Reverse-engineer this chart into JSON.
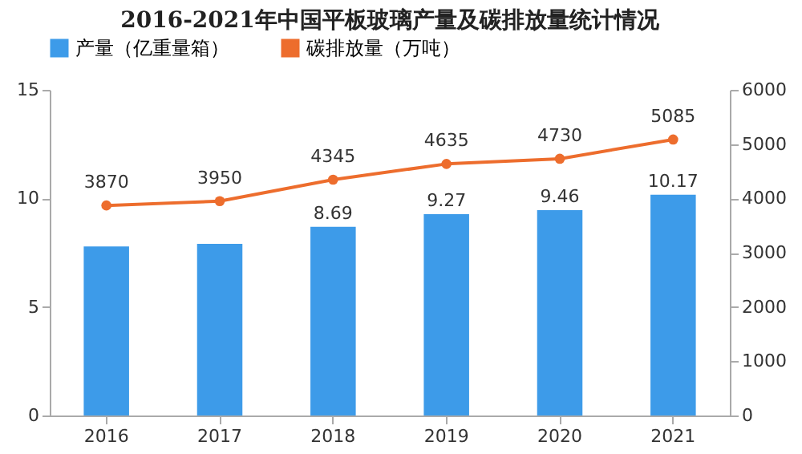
{
  "chart_data": {
    "type": "bar",
    "title": "2016-2021年中国平板玻璃产量及碳排放量统计情况",
    "categories": [
      "2016",
      "2017",
      "2018",
      "2019",
      "2020",
      "2021"
    ],
    "series": [
      {
        "name": "产量（亿重量箱）",
        "color": "#3d9be9",
        "values": [
          7.79,
          7.91,
          8.69,
          9.27,
          9.46,
          10.17
        ],
        "value_labels": [
          null,
          null,
          "8.69",
          "9.27",
          "9.46",
          "10.17"
        ]
      },
      {
        "name": "碳排放量（万吨）",
        "type": "line",
        "axis": "y2",
        "color": "#ed6d2d",
        "marker": "circle",
        "values": [
          3870,
          3950,
          4345,
          4635,
          4730,
          5085
        ],
        "value_labels": [
          "3870",
          "3950",
          "4345",
          "4635",
          "4730",
          "5085"
        ]
      }
    ],
    "ylim": [
      0,
      15
    ],
    "yticks": [
      0,
      5,
      10,
      15
    ],
    "y2lim": [
      0,
      6000
    ],
    "y2ticks": [
      0,
      1000,
      2000,
      3000,
      4000,
      5000,
      6000
    ],
    "grid": false,
    "legend": "top"
  }
}
